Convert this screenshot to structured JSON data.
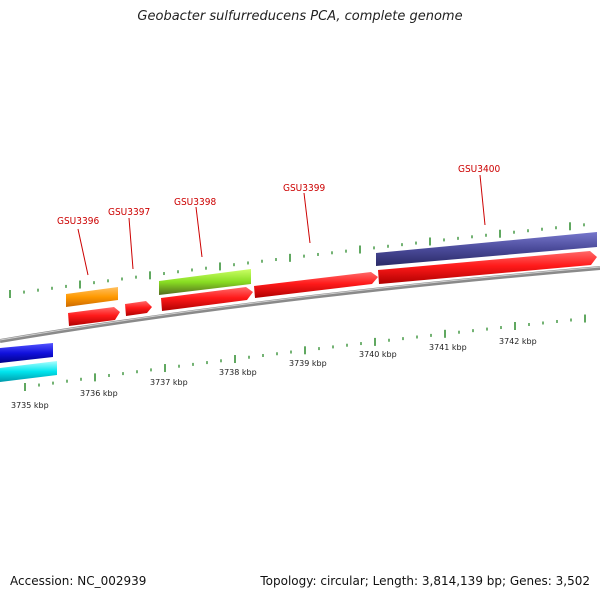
{
  "title": "Geobacter sulfurreducens PCA, complete genome",
  "footer": {
    "accession": "Accession: NC_002939",
    "stats": "Topology: circular; Length: 3,814,139 bp; Genes: 3,502"
  },
  "colors": {
    "forward_cds": "#ff1a1a",
    "reverse_orange": "#ff9900",
    "reverse_green": "#88dd22",
    "reverse_purple": "#4a4a99",
    "blue_track": "#1111dd",
    "cyan_track": "#00e5ee",
    "tick": "#2a8a2a",
    "label": "#cc0000",
    "backbone": "#888888"
  },
  "gene_labels": [
    "GSU3396",
    "GSU3397",
    "GSU3398",
    "GSU3399",
    "GSU3400"
  ],
  "kbp_labels": [
    "3735 kbp",
    "3736 kbp",
    "3737 kbp",
    "3738 kbp",
    "3739 kbp",
    "3740 kbp",
    "3741 kbp",
    "3742 kbp"
  ]
}
